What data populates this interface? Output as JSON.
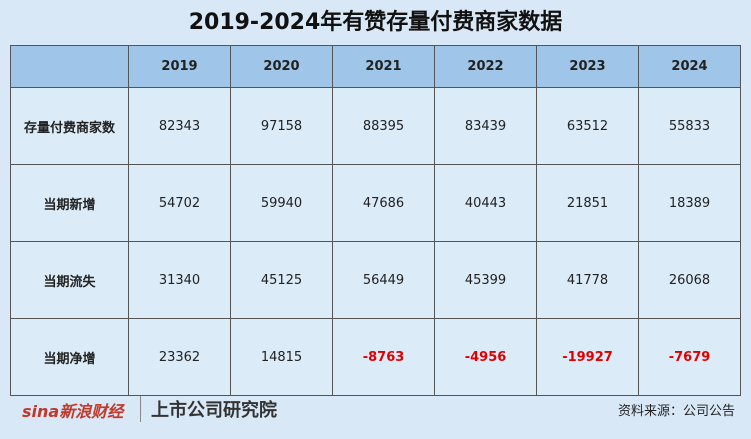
{
  "title": "2019-2024年有赞存量付费商家数据",
  "table": {
    "header": [
      "2019",
      "2020",
      "2021",
      "2022",
      "2023",
      "2024"
    ],
    "rows": [
      {
        "label": "存量付费商家数",
        "values": [
          82343,
          97158,
          88395,
          83439,
          63512,
          55833
        ]
      },
      {
        "label": "当期新增",
        "values": [
          54702,
          59940,
          47686,
          40443,
          21851,
          18389
        ]
      },
      {
        "label": "当期流失",
        "values": [
          31340,
          45125,
          56449,
          45399,
          41778,
          26068
        ]
      },
      {
        "label": "当期净增",
        "values": [
          23362,
          14815,
          -8763,
          -4956,
          -19927,
          -7679
        ]
      }
    ]
  },
  "footer": {
    "logo_sina": "sina新浪财经",
    "logo_institute": "上市公司研究院",
    "source": "资料来源：公司公告"
  }
}
